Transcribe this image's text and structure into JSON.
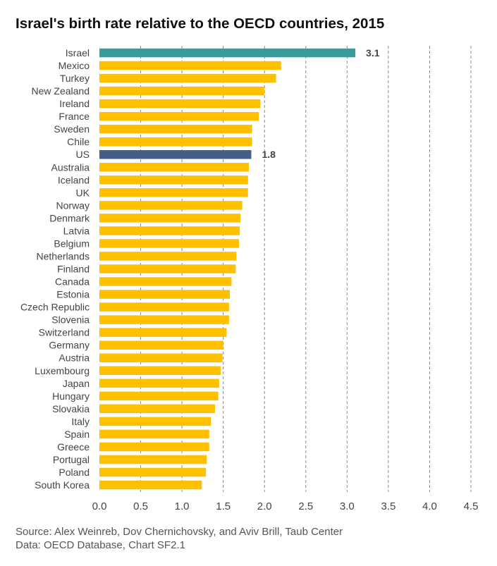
{
  "chart_data": {
    "type": "bar",
    "orientation": "horizontal",
    "title": "Israel's birth rate relative to the OECD countries, 2015",
    "categories": [
      "Israel",
      "Mexico",
      "Turkey",
      "New Zealand",
      "Ireland",
      "France",
      "Sweden",
      "Chile",
      "US",
      "Australia",
      "Iceland",
      "UK",
      "Norway",
      "Denmark",
      "Latvia",
      "Belgium",
      "Netherlands",
      "Finland",
      "Canada",
      "Estonia",
      "Czech Republic",
      "Slovenia",
      "Switzerland",
      "Germany",
      "Austria",
      "Luxembourg",
      "Japan",
      "Hungary",
      "Slovakia",
      "Italy",
      "Spain",
      "Greece",
      "Portugal",
      "Poland",
      "South Korea"
    ],
    "values": [
      3.1,
      2.2,
      2.14,
      2.0,
      1.95,
      1.93,
      1.85,
      1.85,
      1.84,
      1.81,
      1.8,
      1.8,
      1.73,
      1.71,
      1.7,
      1.69,
      1.66,
      1.65,
      1.6,
      1.58,
      1.57,
      1.57,
      1.54,
      1.5,
      1.49,
      1.47,
      1.45,
      1.44,
      1.4,
      1.35,
      1.33,
      1.33,
      1.3,
      1.29,
      1.24
    ],
    "data_labels": {
      "Israel": "3.1",
      "US": "1.8"
    },
    "xlim": [
      0,
      4.5
    ],
    "xticks": [
      "0.0",
      "0.5",
      "1.0",
      "1.5",
      "2.0",
      "2.5",
      "3.0",
      "3.5",
      "4.0",
      "4.5"
    ],
    "grid": "vertical dashed",
    "colors": {
      "default": "#FFC000",
      "Israel": "#389C9C",
      "US": "#445E87"
    }
  },
  "source": {
    "line1": "Source: Alex Weinreb, Dov Chernichovsky, and Aviv Brill, Taub Center",
    "line2": "Data: OECD Database, Chart SF2.1"
  }
}
